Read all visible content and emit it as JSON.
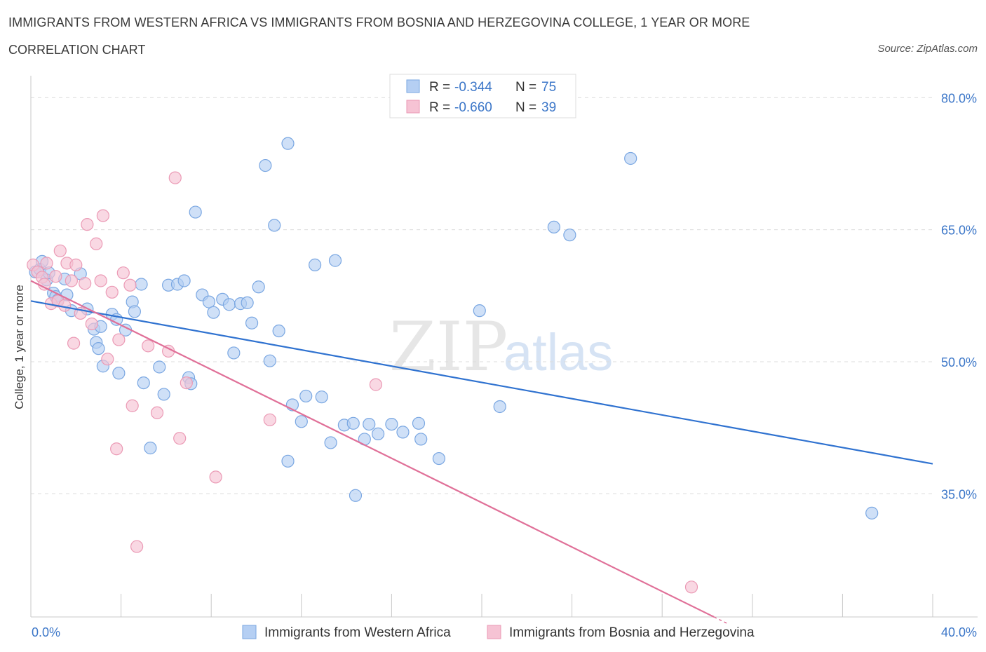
{
  "header": {
    "title": "IMMIGRANTS FROM WESTERN AFRICA VS IMMIGRANTS FROM BOSNIA AND HERZEGOVINA COLLEGE, 1 YEAR OR MORE",
    "subtitle": "CORRELATION CHART",
    "source": "Source: ZipAtlas.com"
  },
  "watermark": {
    "zip": "ZIP",
    "atlas": "atlas"
  },
  "legend": {
    "r_label": "R =",
    "n_label": "N =",
    "series": [
      {
        "r": "-0.344",
        "n": "75"
      },
      {
        "r": "-0.660",
        "n": "39"
      }
    ]
  },
  "colors": {
    "blue_fill": "#b5cff3",
    "blue_stroke": "#7aa7e2",
    "blue_line": "#2f72d0",
    "pink_fill": "#f6c3d4",
    "pink_stroke": "#eb9ab5",
    "pink_line": "#e07098",
    "tick_text": "#3b76c8"
  },
  "chart_data": {
    "type": "scatter",
    "xlabel": "",
    "ylabel": "College, 1 year or more",
    "xlim": [
      0,
      40
    ],
    "ylim": [
      21,
      82.5
    ],
    "x_tick_labels": [
      "0.0%",
      "40.0%"
    ],
    "y_ticks": [
      35,
      50,
      65,
      80
    ],
    "y_tick_labels": [
      "35.0%",
      "50.0%",
      "65.0%",
      "80.0%"
    ],
    "grid": true,
    "legend_position": "top-center",
    "series": [
      {
        "name": "Immigrants from Western Africa",
        "r": -0.344,
        "n": 75,
        "trend": {
          "x": [
            0,
            40
          ],
          "y": [
            56.9,
            38.4
          ]
        },
        "points": [
          [
            0.2,
            60.2
          ],
          [
            0.4,
            60.5
          ],
          [
            0.5,
            61.4
          ],
          [
            0.7,
            59.3
          ],
          [
            0.8,
            60.1
          ],
          [
            1.0,
            57.8
          ],
          [
            1.1,
            57.4
          ],
          [
            1.2,
            57.0
          ],
          [
            1.5,
            59.4
          ],
          [
            1.6,
            57.6
          ],
          [
            1.8,
            55.8
          ],
          [
            2.2,
            60.0
          ],
          [
            2.5,
            56.0
          ],
          [
            2.8,
            53.7
          ],
          [
            2.9,
            52.2
          ],
          [
            3.0,
            51.5
          ],
          [
            3.1,
            54.0
          ],
          [
            3.2,
            49.5
          ],
          [
            3.6,
            55.4
          ],
          [
            3.8,
            54.8
          ],
          [
            3.9,
            48.7
          ],
          [
            4.2,
            53.6
          ],
          [
            4.5,
            56.8
          ],
          [
            4.6,
            55.7
          ],
          [
            4.9,
            58.8
          ],
          [
            5.0,
            47.6
          ],
          [
            5.3,
            40.2
          ],
          [
            5.7,
            49.4
          ],
          [
            5.9,
            46.3
          ],
          [
            6.1,
            58.7
          ],
          [
            6.5,
            58.8
          ],
          [
            6.8,
            59.2
          ],
          [
            7.0,
            48.2
          ],
          [
            7.1,
            47.5
          ],
          [
            7.3,
            67.0
          ],
          [
            7.6,
            57.6
          ],
          [
            7.9,
            56.8
          ],
          [
            8.1,
            55.6
          ],
          [
            8.5,
            57.1
          ],
          [
            8.8,
            56.5
          ],
          [
            9.0,
            51.0
          ],
          [
            9.3,
            56.6
          ],
          [
            9.6,
            56.7
          ],
          [
            9.8,
            54.4
          ],
          [
            10.1,
            58.5
          ],
          [
            10.4,
            72.3
          ],
          [
            10.6,
            50.1
          ],
          [
            10.8,
            65.5
          ],
          [
            11.0,
            53.5
          ],
          [
            11.4,
            38.7
          ],
          [
            11.6,
            45.1
          ],
          [
            12.0,
            43.2
          ],
          [
            12.2,
            46.1
          ],
          [
            12.6,
            61.0
          ],
          [
            12.9,
            46.0
          ],
          [
            13.5,
            61.5
          ],
          [
            13.9,
            42.8
          ],
          [
            14.4,
            34.8
          ],
          [
            14.8,
            41.2
          ],
          [
            15.0,
            42.9
          ],
          [
            15.4,
            41.8
          ],
          [
            16.0,
            42.9
          ],
          [
            16.5,
            42.0
          ],
          [
            17.3,
            41.2
          ],
          [
            11.4,
            74.8
          ],
          [
            13.3,
            40.8
          ],
          [
            14.3,
            43.0
          ],
          [
            17.2,
            43.0
          ],
          [
            18.1,
            39.0
          ],
          [
            19.9,
            55.8
          ],
          [
            20.8,
            44.9
          ],
          [
            23.2,
            65.3
          ],
          [
            23.9,
            64.4
          ],
          [
            26.6,
            73.1
          ],
          [
            37.3,
            32.8
          ]
        ]
      },
      {
        "name": "Immigrants from Bosnia and Herzegovina",
        "r": -0.66,
        "n": 39,
        "trend": {
          "x": [
            0,
            30.3
          ],
          "y": [
            59.2,
            21.0
          ]
        },
        "points": [
          [
            0.1,
            61.0
          ],
          [
            0.3,
            60.2
          ],
          [
            0.5,
            59.6
          ],
          [
            0.6,
            58.8
          ],
          [
            0.7,
            61.2
          ],
          [
            0.9,
            56.6
          ],
          [
            1.1,
            59.7
          ],
          [
            1.2,
            56.9
          ],
          [
            1.3,
            62.6
          ],
          [
            1.5,
            56.4
          ],
          [
            1.6,
            61.2
          ],
          [
            1.8,
            59.2
          ],
          [
            1.9,
            52.1
          ],
          [
            2.0,
            61.0
          ],
          [
            2.2,
            55.5
          ],
          [
            2.4,
            58.9
          ],
          [
            2.5,
            65.6
          ],
          [
            2.7,
            54.3
          ],
          [
            2.9,
            63.4
          ],
          [
            3.1,
            59.2
          ],
          [
            3.2,
            66.6
          ],
          [
            3.4,
            50.3
          ],
          [
            3.6,
            57.9
          ],
          [
            3.8,
            40.1
          ],
          [
            3.9,
            52.5
          ],
          [
            4.1,
            60.1
          ],
          [
            4.4,
            58.7
          ],
          [
            4.5,
            45.0
          ],
          [
            4.7,
            29.0
          ],
          [
            5.2,
            51.8
          ],
          [
            5.6,
            44.2
          ],
          [
            6.1,
            51.2
          ],
          [
            6.4,
            70.9
          ],
          [
            6.6,
            41.3
          ],
          [
            6.9,
            47.6
          ],
          [
            8.2,
            36.9
          ],
          [
            10.6,
            43.4
          ],
          [
            15.3,
            47.4
          ],
          [
            29.3,
            24.4
          ]
        ]
      }
    ]
  },
  "bottom_legend": [
    {
      "label": "Immigrants from Western Africa"
    },
    {
      "label": "Immigrants from Bosnia and Herzegovina"
    }
  ]
}
